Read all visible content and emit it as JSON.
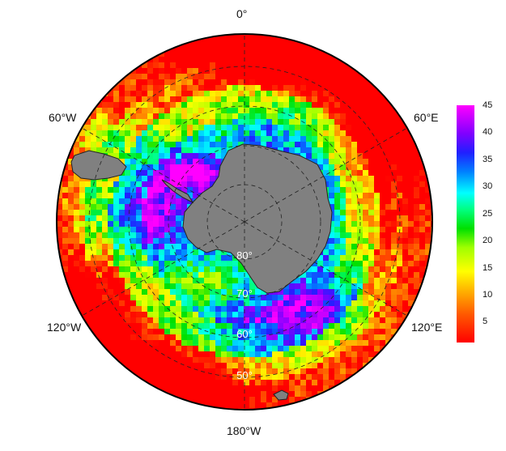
{
  "map": {
    "projection": "south-polar-stereographic",
    "longitude_labels": {
      "top": "0°",
      "upper_left": "60°W",
      "upper_right": "60°E",
      "lower_left": "120°W",
      "lower_right": "120°E",
      "bottom": "180°W"
    },
    "latitude_labels": [
      "80°",
      "70°",
      "60°",
      "50°"
    ],
    "land_color": "#808080",
    "graticule": "dashed"
  },
  "colorbar": {
    "min": 1,
    "max": 45,
    "ticks": [
      "5",
      "10",
      "15",
      "20",
      "25",
      "30",
      "35",
      "40",
      "45"
    ],
    "colormap": "rainbow red-yellow-green-cyan-blue-magenta"
  }
}
